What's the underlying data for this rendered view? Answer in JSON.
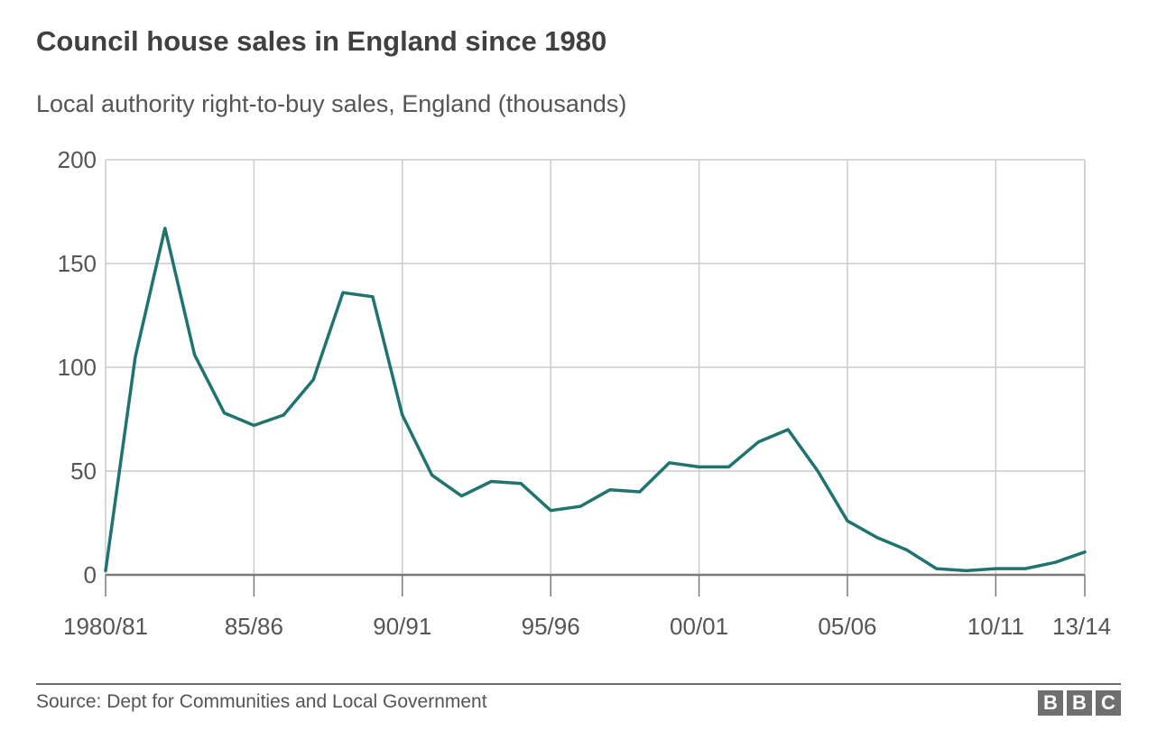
{
  "title": "Council house sales in England since 1980",
  "subtitle": "Local authority right-to-buy sales, England (thousands)",
  "source": "Source: Dept for Communities and Local Government",
  "logo": [
    "B",
    "B",
    "C"
  ],
  "colors": {
    "line": "#1f7470",
    "grid": "#cccccc",
    "axis": "#7a7a7a",
    "text": "#404040"
  },
  "chart_data": {
    "type": "line",
    "title": "Council house sales in England since 1980",
    "subtitle": "Local authority right-to-buy sales, England (thousands)",
    "xlabel": "",
    "ylabel": "",
    "ylim": [
      0,
      200
    ],
    "yticks": [
      "0",
      "50",
      "100",
      "150",
      "200"
    ],
    "xticks": [
      "1980/81",
      "85/86",
      "90/91",
      "95/96",
      "00/01",
      "05/06",
      "10/11",
      "13/14"
    ],
    "grid": true,
    "legend": "none",
    "series": [
      {
        "x": [
          "1980/81",
          "1981/82",
          "1982/83",
          "1983/84",
          "1984/85",
          "1985/86",
          "1986/87",
          "1987/88",
          "1988/89",
          "1989/90",
          "1990/91",
          "1991/92",
          "1992/93",
          "1993/94",
          "1994/95",
          "1995/96",
          "1996/97",
          "1997/98",
          "1998/99",
          "1999/00",
          "2000/01",
          "2001/02",
          "2002/03",
          "2003/04",
          "2004/05",
          "2005/06",
          "2006/07",
          "2007/08",
          "2008/09",
          "2009/10",
          "2010/11",
          "2011/12",
          "2012/13",
          "2013/14"
        ],
        "values": [
          2,
          105,
          167,
          106,
          78,
          72,
          77,
          94,
          136,
          134,
          77,
          48,
          38,
          45,
          44,
          31,
          33,
          41,
          40,
          54,
          52,
          52,
          64,
          70,
          50,
          26,
          18,
          12,
          3,
          2,
          3,
          3,
          6,
          11
        ]
      }
    ]
  }
}
